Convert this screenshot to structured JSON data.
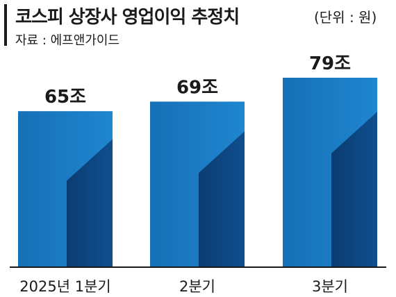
{
  "header": {
    "title": "코스피 상장사 영업이익 추정치",
    "unit": "(단위 : 원)",
    "source": "자료 : 에프앤가이드"
  },
  "colors": {
    "bar_light": "#1f86d0",
    "bar_mid": "#1670b6",
    "bar_dark": "#0f4f8f",
    "bar_darkest": "#0b3c70",
    "text": "#1a1a1a"
  },
  "chart_data": {
    "type": "bar",
    "title": "코스피 상장사 영업이익 추정치",
    "unit": "원",
    "categories": [
      "2025년 1분기",
      "2분기",
      "3분기"
    ],
    "values": [
      65,
      69,
      79
    ],
    "value_labels": [
      "65조",
      "69조",
      "79조"
    ],
    "ylim": [
      0,
      79
    ],
    "grid": false,
    "legend": "none"
  }
}
